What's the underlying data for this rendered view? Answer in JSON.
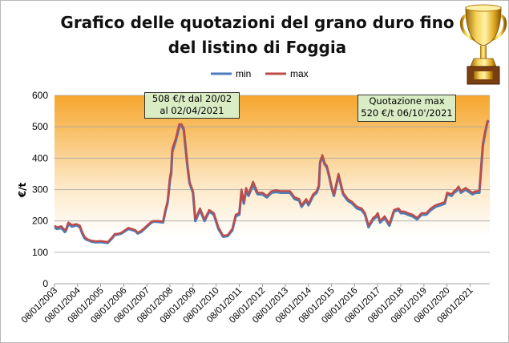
{
  "chart_data": {
    "type": "line",
    "title": "Grafico delle quotazioni del grano duro fino del listino di Foggia",
    "xlabel": "",
    "ylabel": "€/t",
    "ylim": [
      0,
      600
    ],
    "yticks": [
      0,
      100,
      200,
      300,
      400,
      500,
      600
    ],
    "xlim": [
      2003.0,
      2021.85
    ],
    "xticks": [
      "08/01/2003",
      "08/01/2004",
      "08/01/2005",
      "08/01/2006",
      "08/01/2007",
      "08/01/2008",
      "08/01/2009",
      "08/01/2010",
      "08/01/2011",
      "08/01/2012",
      "08/01/2013",
      "08/01/2014",
      "08/01/2015",
      "08/01/2016",
      "08/01/2017",
      "08/01/2018",
      "08/01/2019",
      "08/01/2020",
      "08/01/2021"
    ],
    "grid": "horizontal",
    "background": "gradient orange to white",
    "legend_position": "top",
    "colors": {
      "min": "#4a7ebb",
      "max": "#be4b48",
      "grid": "#a6a6a6",
      "annotation_fill": "#d9ecc4"
    },
    "series": [
      {
        "name": "min",
        "x": [
          2003.0,
          2003.1,
          2003.3,
          2003.45,
          2003.5,
          2003.6,
          2003.7,
          2003.75,
          2003.95,
          2004.1,
          2004.2,
          2004.3,
          2004.4,
          2004.5,
          2004.6,
          2004.8,
          2005.0,
          2005.3,
          2005.5,
          2005.6,
          2005.8,
          2005.9,
          2006.2,
          2006.5,
          2006.6,
          2006.75,
          2006.9,
          2007.2,
          2007.3,
          2007.5,
          2007.7,
          2007.8,
          2007.9,
          2008.0,
          2008.05,
          2008.1,
          2008.25,
          2008.4,
          2008.5,
          2008.6,
          2008.75,
          2008.85,
          2009.0,
          2009.1,
          2009.3,
          2009.5,
          2009.7,
          2009.9,
          2010.1,
          2010.3,
          2010.5,
          2010.7,
          2010.85,
          2011.0,
          2011.1,
          2011.2,
          2011.3,
          2011.4,
          2011.6,
          2011.8,
          2012.0,
          2012.2,
          2012.4,
          2012.6,
          2012.8,
          2013.0,
          2013.2,
          2013.4,
          2013.6,
          2013.7,
          2013.9,
          2014.0,
          2014.2,
          2014.35,
          2014.45,
          2014.5,
          2014.6,
          2014.7,
          2014.8,
          2014.9,
          2015.0,
          2015.1,
          2015.3,
          2015.5,
          2015.7,
          2015.9,
          2016.1,
          2016.3,
          2016.45,
          2016.6,
          2016.8,
          2016.9,
          2017.0,
          2017.1,
          2017.3,
          2017.5,
          2017.7,
          2017.9,
          2018.0,
          2018.15,
          2018.3,
          2018.5,
          2018.7,
          2018.9,
          2019.1,
          2019.3,
          2019.5,
          2019.7,
          2019.9,
          2020.0,
          2020.2,
          2020.3,
          2020.4,
          2020.5,
          2020.6,
          2020.8,
          2021.0,
          2021.1,
          2021.25,
          2021.4,
          2021.55,
          2021.65,
          2021.75,
          2021.8
        ],
        "values": [
          180,
          175,
          178,
          165,
          170,
          190,
          185,
          182,
          186,
          180,
          160,
          145,
          140,
          138,
          134,
          132,
          133,
          130,
          145,
          155,
          158,
          160,
          175,
          168,
          160,
          165,
          175,
          195,
          198,
          197,
          195,
          230,
          260,
          330,
          350,
          420,
          455,
          500,
          505,
          490,
          380,
          320,
          290,
          200,
          235,
          200,
          230,
          220,
          175,
          150,
          152,
          170,
          215,
          220,
          295,
          255,
          300,
          280,
          315,
          285,
          285,
          275,
          290,
          292,
          290,
          290,
          290,
          270,
          265,
          245,
          265,
          250,
          280,
          290,
          310,
          385,
          405,
          380,
          370,
          340,
          305,
          280,
          345,
          285,
          265,
          255,
          240,
          235,
          220,
          180,
          205,
          210,
          220,
          195,
          210,
          185,
          230,
          235,
          225,
          225,
          220,
          215,
          205,
          220,
          220,
          235,
          245,
          250,
          255,
          285,
          280,
          290,
          295,
          305,
          290,
          300,
          290,
          285,
          290,
          290,
          440,
          480,
          515,
          520
        ]
      },
      {
        "name": "max",
        "x": [
          2003.0,
          2003.1,
          2003.3,
          2003.45,
          2003.5,
          2003.6,
          2003.7,
          2003.75,
          2003.95,
          2004.1,
          2004.2,
          2004.3,
          2004.4,
          2004.5,
          2004.6,
          2004.8,
          2005.0,
          2005.3,
          2005.5,
          2005.6,
          2005.8,
          2005.9,
          2006.2,
          2006.5,
          2006.6,
          2006.75,
          2006.9,
          2007.2,
          2007.3,
          2007.5,
          2007.7,
          2007.8,
          2007.9,
          2008.0,
          2008.05,
          2008.1,
          2008.25,
          2008.4,
          2008.5,
          2008.6,
          2008.75,
          2008.85,
          2009.0,
          2009.1,
          2009.3,
          2009.5,
          2009.7,
          2009.9,
          2010.1,
          2010.3,
          2010.5,
          2010.7,
          2010.85,
          2011.0,
          2011.1,
          2011.2,
          2011.3,
          2011.4,
          2011.6,
          2011.8,
          2012.0,
          2012.2,
          2012.4,
          2012.6,
          2012.8,
          2013.0,
          2013.2,
          2013.4,
          2013.6,
          2013.7,
          2013.9,
          2014.0,
          2014.2,
          2014.35,
          2014.45,
          2014.5,
          2014.6,
          2014.7,
          2014.8,
          2014.9,
          2015.0,
          2015.1,
          2015.3,
          2015.5,
          2015.7,
          2015.9,
          2016.1,
          2016.3,
          2016.45,
          2016.6,
          2016.8,
          2016.9,
          2017.0,
          2017.1,
          2017.3,
          2017.5,
          2017.7,
          2017.9,
          2018.0,
          2018.15,
          2018.3,
          2018.5,
          2018.7,
          2018.9,
          2019.1,
          2019.3,
          2019.5,
          2019.7,
          2019.9,
          2020.0,
          2020.2,
          2020.3,
          2020.4,
          2020.5,
          2020.6,
          2020.8,
          2021.0,
          2021.1,
          2021.25,
          2021.4,
          2021.55,
          2021.65,
          2021.75,
          2021.8
        ],
        "values": [
          185,
          180,
          183,
          170,
          175,
          195,
          190,
          187,
          190,
          185,
          165,
          150,
          143,
          140,
          137,
          135,
          136,
          133,
          148,
          158,
          160,
          163,
          178,
          171,
          163,
          168,
          178,
          198,
          200,
          200,
          198,
          235,
          265,
          340,
          360,
          430,
          462,
          508,
          508,
          495,
          385,
          325,
          295,
          205,
          240,
          205,
          235,
          225,
          180,
          153,
          155,
          175,
          220,
          225,
          300,
          260,
          305,
          285,
          325,
          290,
          290,
          280,
          295,
          298,
          295,
          295,
          295,
          275,
          270,
          250,
          270,
          255,
          285,
          295,
          315,
          390,
          410,
          385,
          375,
          345,
          310,
          285,
          350,
          290,
          270,
          260,
          245,
          240,
          225,
          185,
          210,
          215,
          225,
          200,
          215,
          190,
          235,
          240,
          230,
          230,
          225,
          220,
          210,
          225,
          225,
          240,
          250,
          255,
          260,
          290,
          285,
          295,
          300,
          310,
          295,
          305,
          295,
          290,
          295,
          295,
          445,
          485,
          518,
          520
        ]
      }
    ],
    "annotations": [
      {
        "text": "508 €/t  dal 20/02 al 02/04/2021"
      },
      {
        "text": "Quotazione max 520 €/t  06/10'/2021"
      }
    ]
  }
}
